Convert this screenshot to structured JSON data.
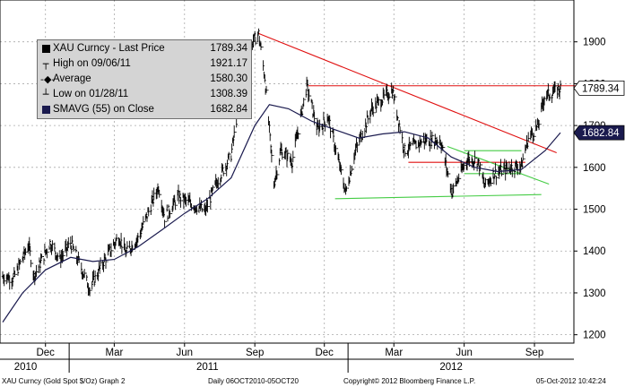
{
  "chart_data": {
    "type": "line",
    "title": "",
    "xlabel": "",
    "ylabel": "",
    "y_axis_position": "right",
    "ylim": [
      1180,
      2000
    ],
    "yticks": [
      1200,
      1300,
      1400,
      1500,
      1600,
      1700,
      1800,
      1900
    ],
    "grid": true,
    "legend_position": "top-left",
    "x_range": [
      "2010-10-06",
      "2012-10-05"
    ],
    "month_ticks": [
      {
        "label": "Dec",
        "date": "2010-12-01"
      },
      {
        "label": "Mar",
        "date": "2011-03-01"
      },
      {
        "label": "Jun",
        "date": "2011-06-01"
      },
      {
        "label": "Sep",
        "date": "2011-09-01"
      },
      {
        "label": "Dec",
        "date": "2011-12-01"
      },
      {
        "label": "Mar",
        "date": "2012-03-01"
      },
      {
        "label": "Jun",
        "date": "2012-06-01"
      },
      {
        "label": "Sep",
        "date": "2012-09-01"
      }
    ],
    "year_labels": [
      {
        "label": "2010",
        "date": "2010-11-05"
      },
      {
        "label": "2011",
        "date": "2011-07-01"
      },
      {
        "label": "2012",
        "date": "2012-05-15"
      }
    ],
    "series": [
      {
        "name": "XAU Curncy - Last Price",
        "type": "high-low bars",
        "color": "#000000",
        "points": [
          [
            "2010-10-06",
            1340
          ],
          [
            "2010-10-20",
            1335
          ],
          [
            "2010-11-09",
            1415
          ],
          [
            "2010-11-16",
            1340
          ],
          [
            "2010-12-07",
            1420
          ],
          [
            "2010-12-20",
            1380
          ],
          [
            "2011-01-03",
            1420
          ],
          [
            "2011-01-28",
            1310
          ],
          [
            "2011-02-15",
            1375
          ],
          [
            "2011-03-07",
            1435
          ],
          [
            "2011-03-16",
            1395
          ],
          [
            "2011-04-01",
            1430
          ],
          [
            "2011-04-28",
            1555
          ],
          [
            "2011-05-06",
            1480
          ],
          [
            "2011-05-24",
            1530
          ],
          [
            "2011-06-28",
            1495
          ],
          [
            "2011-07-12",
            1560
          ],
          [
            "2011-08-01",
            1630
          ],
          [
            "2011-08-22",
            1880
          ],
          [
            "2011-09-06",
            1920
          ],
          [
            "2011-09-14",
            1815
          ],
          [
            "2011-09-26",
            1560
          ],
          [
            "2011-10-05",
            1640
          ],
          [
            "2011-10-20",
            1615
          ],
          [
            "2011-11-08",
            1795
          ],
          [
            "2011-11-22",
            1690
          ],
          [
            "2011-12-06",
            1720
          ],
          [
            "2011-12-29",
            1540
          ],
          [
            "2012-01-10",
            1635
          ],
          [
            "2012-02-01",
            1740
          ],
          [
            "2012-02-28",
            1785
          ],
          [
            "2012-03-15",
            1640
          ],
          [
            "2012-04-10",
            1665
          ],
          [
            "2012-05-01",
            1665
          ],
          [
            "2012-05-16",
            1540
          ],
          [
            "2012-06-05",
            1620
          ],
          [
            "2012-06-19",
            1615
          ],
          [
            "2012-06-28",
            1555
          ],
          [
            "2012-07-10",
            1585
          ],
          [
            "2012-08-01",
            1600
          ],
          [
            "2012-08-15",
            1605
          ],
          [
            "2012-08-24",
            1670
          ],
          [
            "2012-09-06",
            1700
          ],
          [
            "2012-09-14",
            1770
          ],
          [
            "2012-09-21",
            1775
          ],
          [
            "2012-10-05",
            1789.34
          ]
        ]
      },
      {
        "name": "SMAVG (55) on Close",
        "type": "line",
        "color": "#1a1a4e",
        "points": [
          [
            "2010-10-06",
            1230
          ],
          [
            "2010-11-01",
            1300
          ],
          [
            "2010-12-01",
            1355
          ],
          [
            "2011-01-03",
            1385
          ],
          [
            "2011-02-01",
            1375
          ],
          [
            "2011-03-01",
            1380
          ],
          [
            "2011-04-01",
            1410
          ],
          [
            "2011-05-02",
            1450
          ],
          [
            "2011-06-01",
            1490
          ],
          [
            "2011-07-01",
            1525
          ],
          [
            "2011-08-01",
            1575
          ],
          [
            "2011-09-01",
            1700
          ],
          [
            "2011-09-20",
            1750
          ],
          [
            "2011-10-15",
            1740
          ],
          [
            "2011-11-15",
            1710
          ],
          [
            "2011-12-15",
            1690
          ],
          [
            "2012-01-15",
            1670
          ],
          [
            "2012-02-15",
            1680
          ],
          [
            "2012-03-15",
            1685
          ],
          [
            "2012-04-15",
            1670
          ],
          [
            "2012-05-15",
            1625
          ],
          [
            "2012-06-15",
            1600
          ],
          [
            "2012-07-15",
            1590
          ],
          [
            "2012-08-15",
            1595
          ],
          [
            "2012-09-15",
            1640
          ],
          [
            "2012-10-05",
            1682.84
          ]
        ]
      }
    ],
    "trend_lines": [
      {
        "color": "#e01010",
        "from": [
          "2011-09-06",
          1920
        ],
        "to": [
          "2012-09-30",
          1635
        ]
      },
      {
        "color": "#e01010",
        "from": [
          "2011-11-10",
          1795
        ],
        "to": [
          "2012-10-25",
          1795
        ]
      },
      {
        "color": "#e01010",
        "from": [
          "2012-03-20",
          1612
        ],
        "to": [
          "2012-08-20",
          1612
        ]
      },
      {
        "color": "#44cc44",
        "from": [
          "2011-12-15",
          1525
        ],
        "to": [
          "2012-09-10",
          1535
        ]
      },
      {
        "color": "#44cc44",
        "from": [
          "2012-06-01",
          1640
        ],
        "to": [
          "2012-08-15",
          1640
        ]
      },
      {
        "color": "#44cc44",
        "from": [
          "2012-06-01",
          1585
        ],
        "to": [
          "2012-08-15",
          1585
        ]
      },
      {
        "color": "#44cc44",
        "from": [
          "2012-05-10",
          1650
        ],
        "to": [
          "2012-09-20",
          1560
        ]
      }
    ],
    "value_tags": [
      {
        "value": 1789.34,
        "label": "1789.34",
        "bg": "#ffffff",
        "fg": "#000000"
      },
      {
        "value": 1682.84,
        "label": "1682.84",
        "bg": "#1a1a4e",
        "fg": "#ffffff"
      }
    ]
  },
  "legend": {
    "rows": [
      {
        "symbol": "square",
        "label": "XAU Curncy - Last Price",
        "value": "1789.34",
        "color": "#000000"
      },
      {
        "symbol": "high",
        "label": "High on 09/06/11",
        "value": "1921.17"
      },
      {
        "symbol": "average",
        "label": "Average",
        "value": "1580.30"
      },
      {
        "symbol": "low",
        "label": "Low on 01/28/11",
        "value": "1308.39"
      },
      {
        "symbol": "square",
        "label": "SMAVG (55) on Close",
        "value": "1682.84",
        "color": "#1a1a4e"
      }
    ]
  },
  "footer": {
    "left": "XAU Curncy (Gold Spot  $/Oz) Graph 2",
    "daterange": "Daily 06OCT2010-05OCT20",
    "copyright": "Copyright© 2012 Bloomberg Finance L.P.",
    "timestamp": "05-Oct-2012 10:42:24"
  }
}
